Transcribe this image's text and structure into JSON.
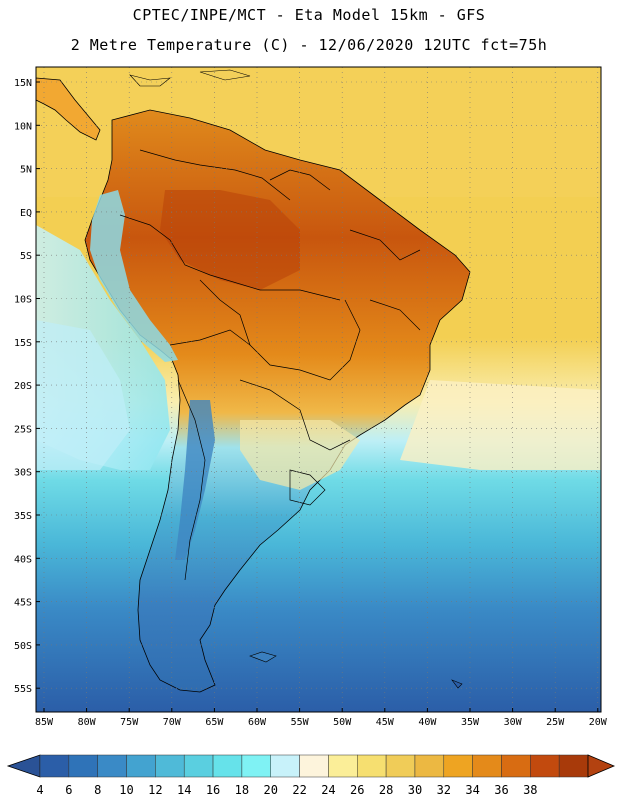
{
  "header": {
    "line1": "CPTEC/INPE/MCT -  Eta Model 15km - GFS",
    "line2": "2 Metre Temperature (C) - 12/06/2020 12UTC fct=75h"
  },
  "axes": {
    "lat_labels": [
      "15N",
      "10N",
      "5N",
      "EQ",
      "5S",
      "10S",
      "15S",
      "20S",
      "25S",
      "30S",
      "35S",
      "40S",
      "45S",
      "50S",
      "55S"
    ],
    "lon_labels": [
      "85W",
      "80W",
      "75W",
      "70W",
      "65W",
      "60W",
      "55W",
      "50W",
      "45W",
      "40W",
      "35W",
      "30W",
      "25W",
      "20W"
    ]
  },
  "colorbar": {
    "labels": [
      "4",
      "6",
      "8",
      "10",
      "12",
      "14",
      "16",
      "18",
      "20",
      "22",
      "24",
      "26",
      "28",
      "30",
      "32",
      "34",
      "36",
      "38"
    ],
    "colors": [
      "#2b5ea8",
      "#2f73b8",
      "#3a8ac6",
      "#43a3d0",
      "#4fbad8",
      "#5acfe0",
      "#66e2ea",
      "#7ff2f4",
      "#c8f2fa",
      "#fdf4dc",
      "#fbee98",
      "#f6df70",
      "#f0cc58",
      "#ecb842",
      "#eea422",
      "#e48a1a",
      "#d86c12",
      "#c24a0e",
      "#a83a0a"
    ],
    "low_end_color": "#2a5296",
    "high_end_color": "#b34210"
  },
  "map": {
    "ocean_colors": [
      "#f2d35a",
      "#7fdfe8",
      "#4ab7d8",
      "#3a8ac6",
      "#2b5ea8"
    ],
    "grid_style": "dotted"
  }
}
